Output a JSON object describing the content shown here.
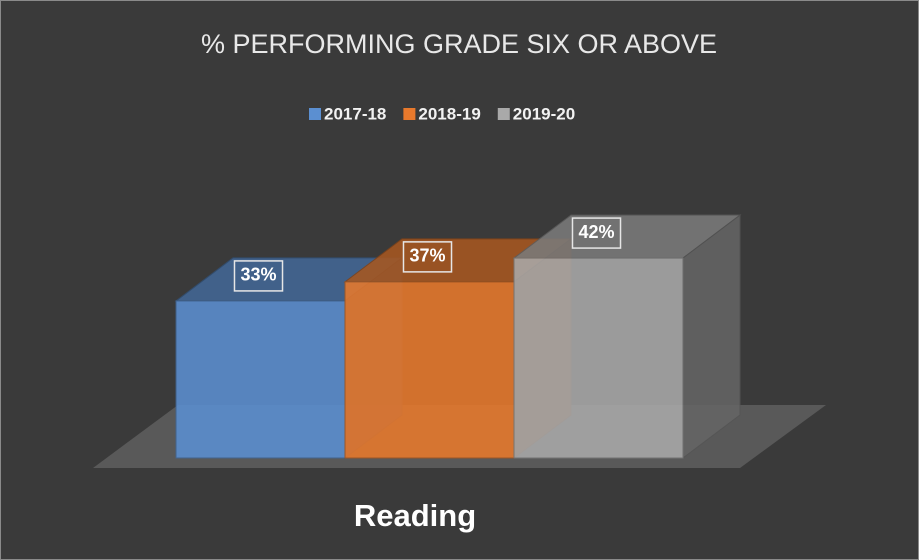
{
  "chart_data": {
    "type": "bar3d",
    "title": "% PERFORMING GRADE SIX OR ABOVE",
    "categories": [
      "Reading"
    ],
    "series": [
      {
        "name": "2017-18",
        "color": "#5b8fd1",
        "values": [
          33
        ],
        "value_labels": [
          "33%"
        ]
      },
      {
        "name": "2018-19",
        "color": "#e8792c",
        "values": [
          37
        ],
        "value_labels": [
          "37%"
        ]
      },
      {
        "name": "2019-20",
        "color": "#a9a9a9",
        "values": [
          42
        ],
        "value_labels": [
          "42%"
        ]
      }
    ],
    "legend": "top"
  }
}
